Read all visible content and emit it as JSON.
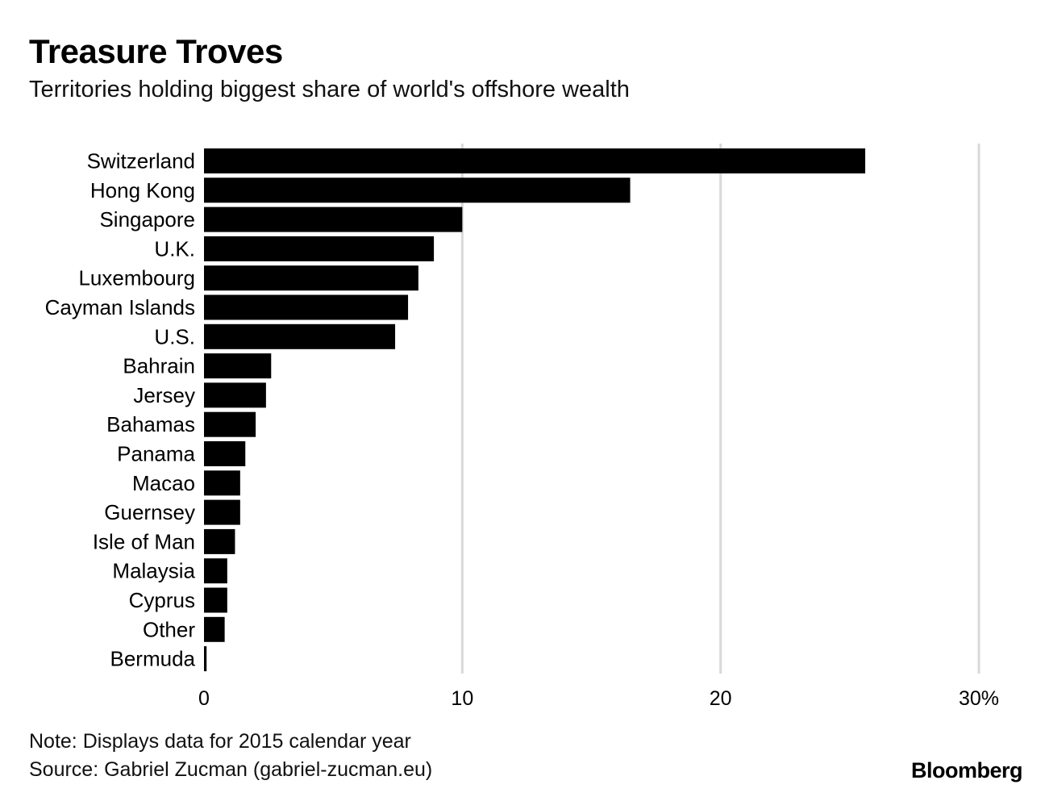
{
  "header": {
    "title": "Treasure Troves",
    "subtitle": "Territories holding biggest share of world's offshore wealth"
  },
  "footer": {
    "note": "Note: Displays data for 2015 calendar year",
    "source": "Source: Gabriel Zucman (gabriel-zucman.eu)",
    "brand": "Bloomberg"
  },
  "colors": {
    "bar": "#000000",
    "grid": "#d9d9d9",
    "text": "#000000"
  },
  "chart_data": {
    "type": "bar",
    "orientation": "horizontal",
    "categories": [
      "Switzerland",
      "Hong Kong",
      "Singapore",
      "U.K.",
      "Luxembourg",
      "Cayman Islands",
      "U.S.",
      "Bahrain",
      "Jersey",
      "Bahamas",
      "Panama",
      "Macao",
      "Guernsey",
      "Isle of Man",
      "Malaysia",
      "Cyprus",
      "Other",
      "Bermuda"
    ],
    "values": [
      25.6,
      16.5,
      10.0,
      8.9,
      8.3,
      7.9,
      7.4,
      2.6,
      2.4,
      2.0,
      1.6,
      1.4,
      1.4,
      1.2,
      0.9,
      0.9,
      0.8,
      0.1
    ],
    "xlim": [
      0,
      30
    ],
    "ticks": [
      0,
      10,
      20,
      30
    ],
    "tick_labels": [
      "0",
      "10",
      "20",
      "30%"
    ],
    "grid": true,
    "xlabel": "",
    "ylabel": ""
  }
}
